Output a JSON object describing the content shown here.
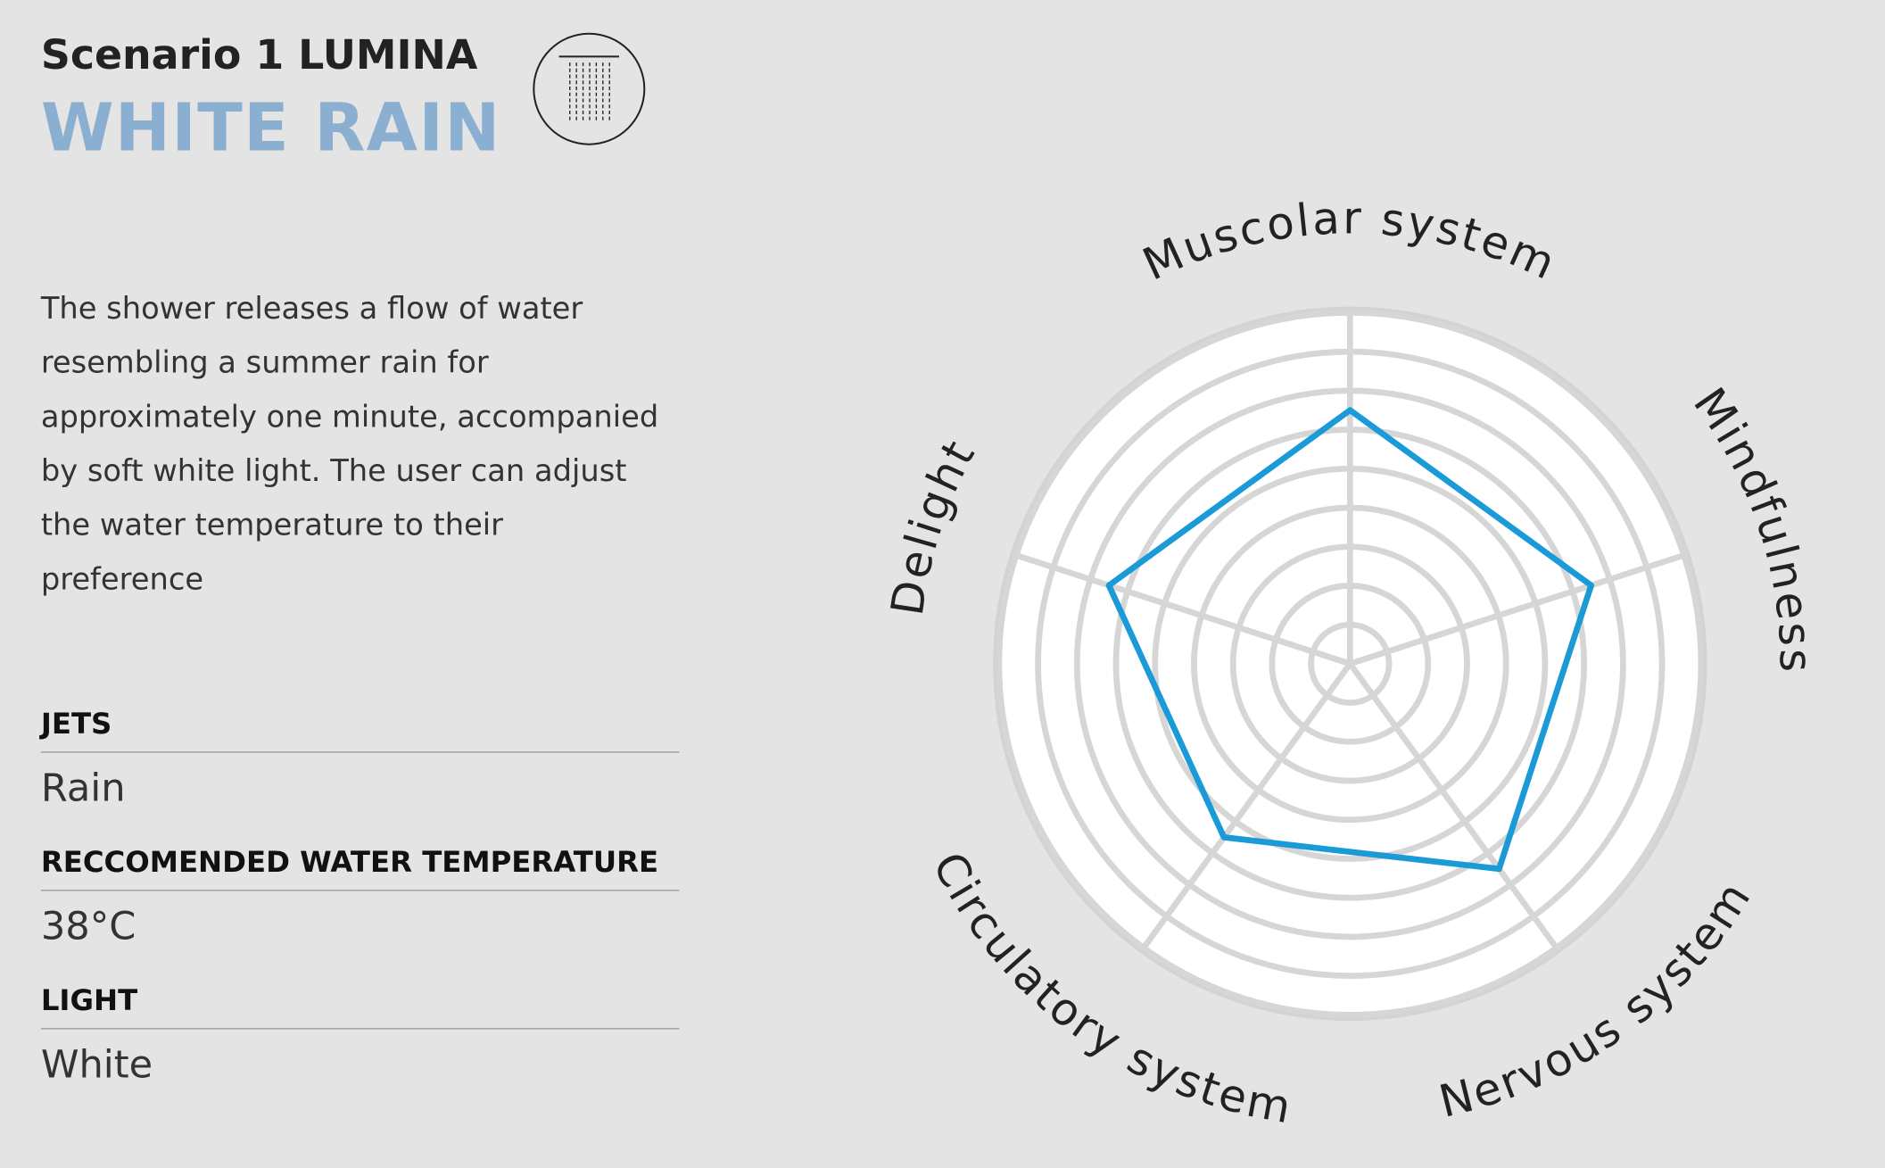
{
  "header": {
    "title": "Scenario 1 LUMINA",
    "subtitle": "WHITE RAIN"
  },
  "description": {
    "lines": [
      "The shower releases a flow of water",
      "resembling a summer rain for",
      "approximately one minute, accompanied",
      "by soft white light. The user can adjust",
      "the water temperature to their",
      "preference"
    ]
  },
  "specs": [
    {
      "label": "JETS",
      "value": "Rain"
    },
    {
      "label": "RECCOMENDED WATER TEMPERATURE",
      "value": "38°C"
    },
    {
      "label": "LIGHT",
      "value": "White"
    }
  ],
  "chart_data": {
    "type": "radar",
    "categories": [
      "Muscolar system",
      "Mindfulness",
      "Nervous system",
      "Circulatory system",
      "Delight"
    ],
    "values": [
      6.5,
      6.5,
      6.5,
      5.5,
      6.5
    ],
    "color": "#1a9ad6",
    "ylim": [
      0,
      9
    ],
    "yticks": [
      1,
      2,
      3,
      4,
      5,
      6,
      7,
      8,
      9
    ],
    "grid": true
  }
}
